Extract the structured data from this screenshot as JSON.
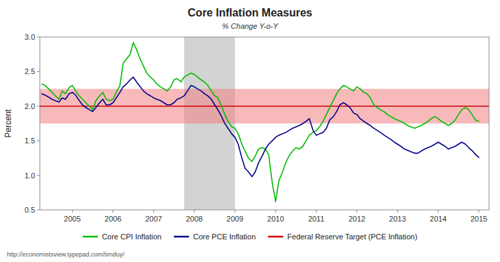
{
  "chart_data": {
    "type": "line",
    "title": "Core Inflation Measures",
    "subtitle": "% Change Y-o-Y",
    "ylabel": "Percent",
    "annotations": [
      {
        "text": "http://economistsview.typepad.com/timduy/"
      }
    ],
    "legend": "bottom",
    "grid": false,
    "xlim": [
      2004.2,
      2015.25
    ],
    "xticks": [
      2005,
      2006,
      2007,
      2008,
      2009,
      2010,
      2011,
      2012,
      2013,
      2014,
      2015
    ],
    "ylim": [
      0.5,
      3.0
    ],
    "yticks": [
      0.5,
      {
        "value": 1.0,
        "label": "1.0"
      },
      1.5,
      {
        "value": 2.0,
        "label": "2.0"
      },
      2.5,
      {
        "value": 3.0,
        "label": "3.0"
      }
    ],
    "recession": {
      "start": 2007.75,
      "end": 2009.0,
      "color": "#d3d3d3"
    },
    "band": {
      "low": 1.75,
      "high": 2.25,
      "color": "#f08080"
    },
    "reference_lines": [
      {
        "name": "Federal Reserve Target (PCE Inflation)",
        "value": 2.0,
        "color": "#cc0000"
      }
    ],
    "x": [
      2004.25,
      2004.33,
      2004.42,
      2004.5,
      2004.58,
      2004.67,
      2004.75,
      2004.83,
      2004.92,
      2005.0,
      2005.08,
      2005.17,
      2005.25,
      2005.33,
      2005.42,
      2005.5,
      2005.58,
      2005.67,
      2005.75,
      2005.83,
      2005.92,
      2006.0,
      2006.08,
      2006.17,
      2006.25,
      2006.33,
      2006.42,
      2006.5,
      2006.58,
      2006.67,
      2006.75,
      2006.83,
      2006.92,
      2007.0,
      2007.08,
      2007.17,
      2007.25,
      2007.33,
      2007.42,
      2007.5,
      2007.58,
      2007.67,
      2007.75,
      2007.83,
      2007.92,
      2008.0,
      2008.08,
      2008.17,
      2008.25,
      2008.33,
      2008.42,
      2008.5,
      2008.58,
      2008.67,
      2008.75,
      2008.83,
      2008.92,
      2009.0,
      2009.08,
      2009.17,
      2009.25,
      2009.33,
      2009.42,
      2009.5,
      2009.58,
      2009.67,
      2009.75,
      2009.83,
      2009.92,
      2010.0,
      2010.08,
      2010.17,
      2010.25,
      2010.33,
      2010.42,
      2010.5,
      2010.58,
      2010.67,
      2010.75,
      2010.83,
      2010.92,
      2011.0,
      2011.08,
      2011.17,
      2011.25,
      2011.33,
      2011.42,
      2011.5,
      2011.58,
      2011.67,
      2011.75,
      2011.83,
      2011.92,
      2012.0,
      2012.08,
      2012.17,
      2012.25,
      2012.33,
      2012.42,
      2012.5,
      2012.58,
      2012.67,
      2012.75,
      2012.83,
      2012.92,
      2013.0,
      2013.08,
      2013.17,
      2013.25,
      2013.33,
      2013.42,
      2013.5,
      2013.58,
      2013.67,
      2013.75,
      2013.83,
      2013.92,
      2014.0,
      2014.08,
      2014.17,
      2014.25,
      2014.33,
      2014.42,
      2014.5,
      2014.58,
      2014.67,
      2014.75,
      2014.83,
      2014.92,
      2015.0
    ],
    "series": [
      {
        "name": "Core CPI Inflation",
        "color": "#00bb00",
        "values": [
          2.32,
          2.3,
          2.25,
          2.2,
          2.15,
          2.1,
          2.22,
          2.18,
          2.27,
          2.3,
          2.22,
          2.15,
          2.1,
          2.05,
          2.0,
          1.95,
          2.08,
          2.15,
          2.2,
          2.1,
          2.08,
          2.1,
          2.2,
          2.3,
          2.62,
          2.68,
          2.75,
          2.92,
          2.82,
          2.68,
          2.58,
          2.48,
          2.42,
          2.38,
          2.32,
          2.28,
          2.25,
          2.22,
          2.28,
          2.38,
          2.4,
          2.35,
          2.42,
          2.45,
          2.48,
          2.46,
          2.42,
          2.38,
          2.35,
          2.3,
          2.22,
          2.15,
          2.12,
          2.0,
          1.88,
          1.78,
          1.7,
          1.68,
          1.6,
          1.45,
          1.35,
          1.25,
          1.2,
          1.28,
          1.38,
          1.4,
          1.38,
          1.3,
          0.88,
          0.62,
          0.92,
          1.05,
          1.18,
          1.28,
          1.35,
          1.4,
          1.38,
          1.42,
          1.5,
          1.58,
          1.62,
          1.65,
          1.7,
          1.78,
          1.88,
          1.98,
          2.08,
          2.18,
          2.25,
          2.3,
          2.28,
          2.25,
          2.22,
          2.28,
          2.25,
          2.2,
          2.18,
          2.12,
          2.02,
          1.98,
          1.95,
          1.92,
          1.88,
          1.85,
          1.82,
          1.8,
          1.78,
          1.75,
          1.72,
          1.7,
          1.68,
          1.7,
          1.72,
          1.75,
          1.78,
          1.82,
          1.85,
          1.82,
          1.78,
          1.75,
          1.72,
          1.75,
          1.8,
          1.88,
          1.95,
          1.98,
          1.95,
          1.88,
          1.8,
          1.78
        ]
      },
      {
        "name": "Core PCE Inflation",
        "color": "#00008b",
        "values": [
          2.18,
          2.16,
          2.13,
          2.1,
          2.08,
          2.06,
          2.12,
          2.1,
          2.18,
          2.2,
          2.16,
          2.08,
          2.02,
          1.98,
          1.95,
          1.92,
          1.98,
          2.05,
          2.1,
          2.02,
          2.02,
          2.05,
          2.12,
          2.2,
          2.28,
          2.32,
          2.38,
          2.42,
          2.35,
          2.28,
          2.22,
          2.18,
          2.15,
          2.12,
          2.1,
          2.08,
          2.05,
          2.02,
          2.02,
          2.05,
          2.1,
          2.12,
          2.15,
          2.22,
          2.3,
          2.28,
          2.25,
          2.22,
          2.18,
          2.15,
          2.1,
          2.02,
          1.95,
          1.85,
          1.75,
          1.68,
          1.6,
          1.55,
          1.45,
          1.25,
          1.1,
          1.05,
          0.98,
          1.05,
          1.18,
          1.28,
          1.38,
          1.45,
          1.5,
          1.55,
          1.58,
          1.6,
          1.62,
          1.65,
          1.68,
          1.7,
          1.72,
          1.75,
          1.78,
          1.82,
          1.65,
          1.58,
          1.6,
          1.62,
          1.68,
          1.8,
          1.85,
          1.92,
          2.02,
          2.05,
          2.02,
          1.98,
          1.9,
          1.88,
          1.82,
          1.78,
          1.75,
          1.72,
          1.68,
          1.65,
          1.62,
          1.58,
          1.55,
          1.52,
          1.48,
          1.45,
          1.42,
          1.38,
          1.36,
          1.34,
          1.32,
          1.32,
          1.35,
          1.38,
          1.4,
          1.42,
          1.45,
          1.48,
          1.45,
          1.42,
          1.38,
          1.4,
          1.42,
          1.45,
          1.48,
          1.45,
          1.4,
          1.36,
          1.3,
          1.26
        ]
      }
    ]
  }
}
